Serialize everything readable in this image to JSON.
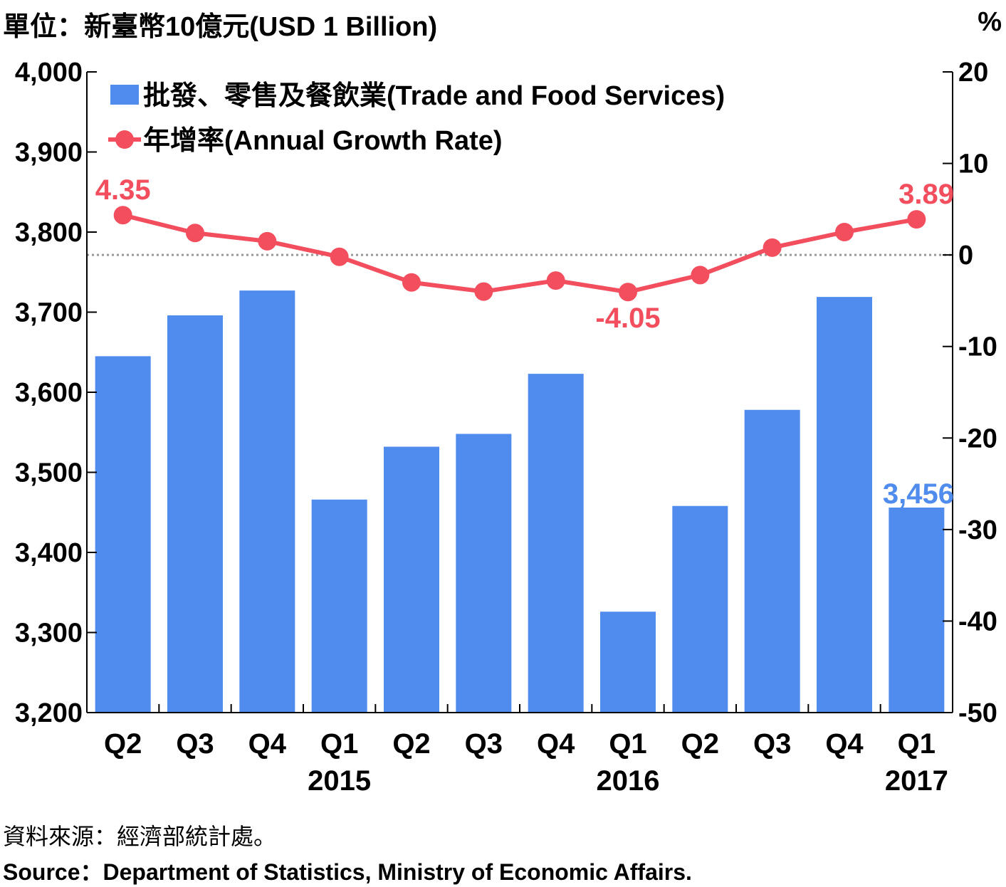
{
  "unit_label": "單位：新臺幣10億元(USD 1 Billion)",
  "right_unit": "%",
  "source_zh": "資料來源：經濟部統計處。",
  "source_en": "Source：Department of Statistics, Ministry of Economic Affairs.",
  "colors": {
    "bar": "#4f8ced",
    "line": "#f24e5e",
    "axis": "#000000",
    "zero_line": "#999999"
  },
  "chart_data": {
    "type": "bar+line",
    "categories": [
      "Q2",
      "Q3",
      "Q4",
      "Q1",
      "Q2",
      "Q3",
      "Q4",
      "Q1",
      "Q2",
      "Q3",
      "Q4",
      "Q1"
    ],
    "years": [
      {
        "label": "2015",
        "category_index": 3
      },
      {
        "label": "2016",
        "category_index": 7
      },
      {
        "label": "2017",
        "category_index": 11
      }
    ],
    "series": [
      {
        "name": "批發、零售及餐飲業(Trade and Food Services)",
        "type": "bar",
        "axis": "left",
        "values": [
          3645,
          3696,
          3727,
          3466,
          3532,
          3548,
          3623,
          3326,
          3458,
          3578,
          3719,
          3456
        ]
      },
      {
        "name": "年增率(Annual Growth Rate)",
        "type": "line",
        "axis": "right",
        "values": [
          4.35,
          2.4,
          1.5,
          -0.2,
          -3.0,
          -4.0,
          -2.8,
          -4.05,
          -2.2,
          0.8,
          2.5,
          3.89
        ]
      }
    ],
    "data_labels": [
      {
        "series": 1,
        "index": 0,
        "text": "4.35",
        "placement": "above"
      },
      {
        "series": 1,
        "index": 11,
        "text": "3.89",
        "placement": "above"
      },
      {
        "series": 1,
        "index": 7,
        "text": "-4.05",
        "placement": "below"
      },
      {
        "series": 0,
        "index": 11,
        "text": "3,456",
        "placement": "above"
      }
    ],
    "y_left": {
      "min": 3200,
      "max": 4000,
      "ticks": [
        3200,
        3300,
        3400,
        3500,
        3600,
        3700,
        3800,
        3900,
        4000
      ],
      "tick_labels": [
        "3,200",
        "3,300",
        "3,400",
        "3,500",
        "3,600",
        "3,700",
        "3,800",
        "3,900",
        "4,000"
      ]
    },
    "y_right": {
      "min": -50,
      "max": 20,
      "ticks": [
        -50,
        -40,
        -30,
        -20,
        -10,
        0,
        10,
        20
      ],
      "tick_labels": [
        "-50",
        "-40",
        "-30",
        "-20",
        "-10",
        "0",
        "10",
        "20"
      ]
    },
    "legend_placement": "top-left",
    "zero_reference_line": "dotted"
  }
}
